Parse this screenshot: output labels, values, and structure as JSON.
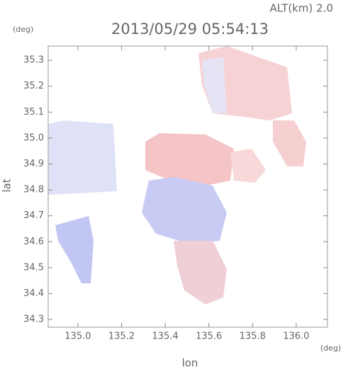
{
  "chart_data": {
    "type": "map",
    "title": "2013/05/29 05:54:13",
    "annotation": "ALT(km) 2.0",
    "xlabel": "lon",
    "ylabel": "lat",
    "x_unit": "(deg)",
    "y_unit": "(deg)",
    "xlim": [
      134.864,
      136.143
    ],
    "ylim": [
      34.27,
      35.355
    ],
    "xticks": [
      {
        "value": 135,
        "label": "135.0"
      },
      135.2,
      135.4,
      135.6,
      135.8,
      {
        "value": 136,
        "label": "136.0"
      }
    ],
    "yticks": [
      34.3,
      34.4,
      34.5,
      34.6,
      34.7,
      34.8,
      34.9,
      {
        "value": 35,
        "label": "35.0"
      },
      35.1,
      35.2,
      35.3
    ]
  }
}
